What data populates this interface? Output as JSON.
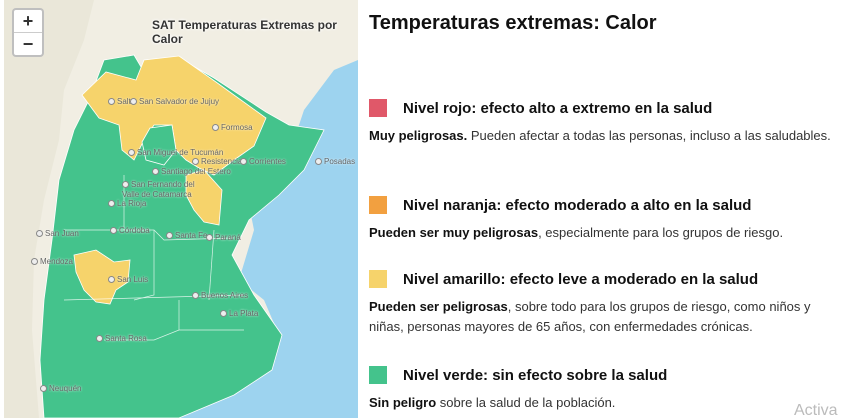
{
  "map": {
    "title": "SAT Temperaturas Extremas por Calor",
    "zoom_in": "+",
    "zoom_out": "−",
    "cities": [
      "Salta",
      "San Salvador de Jujuy",
      "Formosa",
      "San Miguel de Tucumán",
      "Resistencia",
      "Corrientes",
      "Posadas",
      "Santiago del Estero",
      "San Fernando del Valle de Catamarca",
      "La Rioja",
      "San Juan",
      "Córdoba",
      "Santa Fe",
      "Paraná",
      "Mendoza",
      "San Luis",
      "Buenos Aires",
      "La Plata",
      "Santa Rosa",
      "Neuquén"
    ]
  },
  "panel": {
    "title": "Temperaturas extremas: Calor",
    "levels": [
      {
        "color": "#e05869",
        "title": "Nivel rojo: efecto alto a extremo en la salud",
        "bold": "Muy peligrosas.",
        "text": " Pueden afectar a todas las personas, incluso a las saludables."
      },
      {
        "color": "#f2a040",
        "title": "Nivel naranja: efecto moderado a alto en la salud",
        "bold": "Pueden ser muy peligrosas",
        "text": ", especialmente para los grupos de riesgo."
      },
      {
        "color": "#f6d36b",
        "title": "Nivel amarillo: efecto leve a moderado en la salud",
        "bold": "Pueden ser peligrosas",
        "text": ", sobre todo para los grupos de riesgo, como niños y niñas, personas mayores de 65 años, con enfermedades crónicas."
      },
      {
        "color": "#44c38c",
        "title": "Nivel verde: sin efecto sobre la salud",
        "bold": "Sin peligro",
        "text": " sobre la salud de la población."
      }
    ]
  },
  "watermark": "Activa"
}
